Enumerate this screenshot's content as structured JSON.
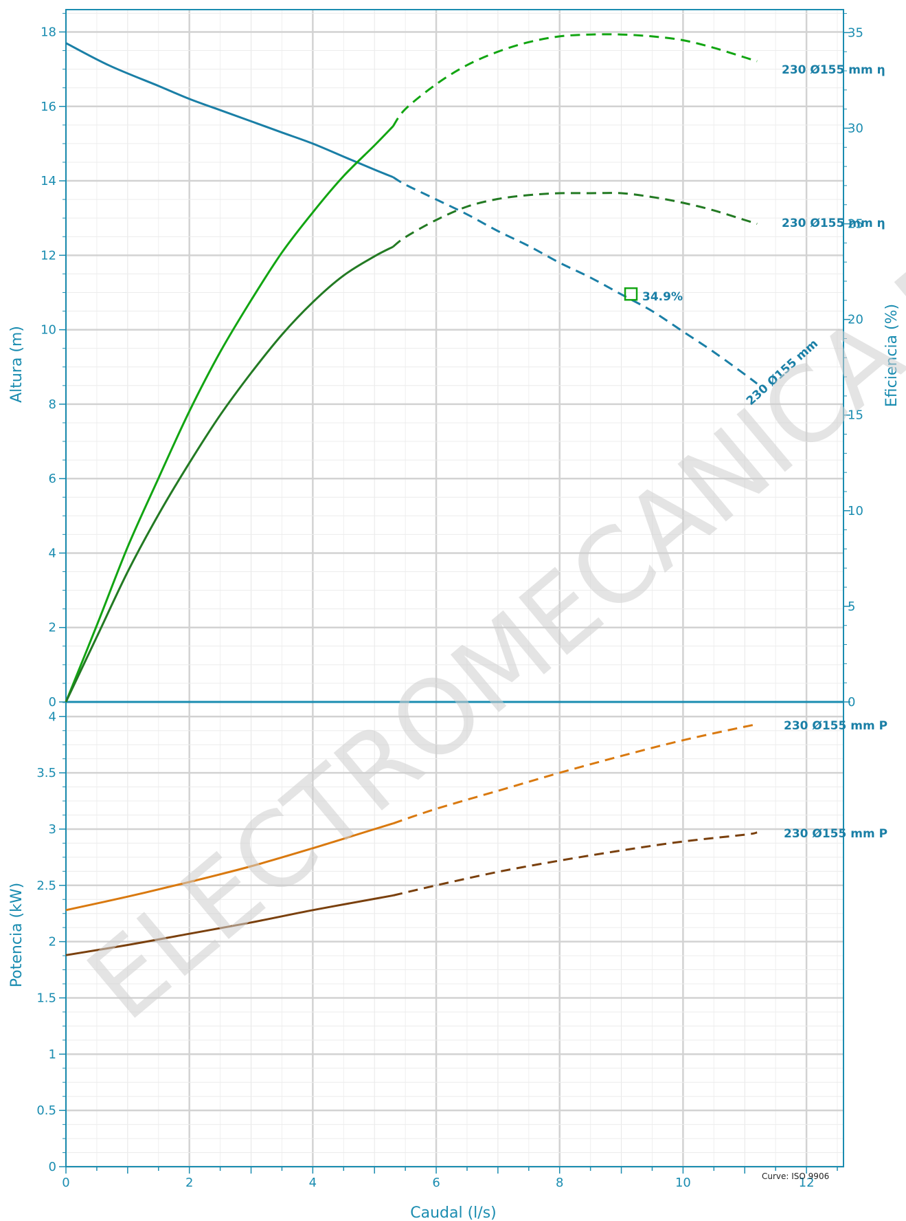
{
  "chart_data": [
    {
      "type": "line",
      "panel": "top",
      "xlabel": "Caudal (l/s)",
      "ylabel": "Altura (m)",
      "y2label": "Eficiencia (%)",
      "xlim": [
        0,
        12.6
      ],
      "ylim": [
        0,
        18.6
      ],
      "y2lim": [
        0,
        36.2
      ],
      "x_ticks": [
        "0",
        "2",
        "4",
        "6",
        "8",
        "10",
        "12"
      ],
      "y_ticks": [
        "0",
        "2",
        "4",
        "6",
        "8",
        "10",
        "12",
        "14",
        "16",
        "18"
      ],
      "y2_ticks": [
        "0",
        "5",
        "10",
        "15",
        "20",
        "25",
        "30",
        "35"
      ],
      "grid": true,
      "series": [
        {
          "name": "230 Ø155 mm",
          "axis": "left",
          "color": "#1a7fa6",
          "solid_until": 5.3,
          "x": [
            0,
            0.7,
            1.5,
            2.0,
            2.5,
            3.0,
            3.5,
            4.0,
            4.5,
            5.0,
            5.3,
            5.5,
            6.0,
            6.5,
            7.0,
            7.5,
            8.0,
            8.5,
            9.0,
            9.5,
            10.0,
            10.5,
            11.0,
            11.2
          ],
          "values": [
            17.7,
            17.1,
            16.55,
            16.2,
            15.9,
            15.6,
            15.3,
            15.0,
            14.65,
            14.3,
            14.1,
            13.9,
            13.5,
            13.1,
            12.65,
            12.25,
            11.8,
            11.4,
            10.95,
            10.5,
            9.95,
            9.4,
            8.8,
            8.55
          ]
        },
        {
          "name": "230 Ø155 mm  η",
          "axis": "right",
          "color": "#12a512",
          "solid_until": 5.3,
          "x": [
            0,
            0.5,
            1.0,
            1.5,
            2.0,
            2.5,
            3.0,
            3.5,
            4.0,
            4.5,
            5.0,
            5.3,
            5.5,
            6.0,
            6.5,
            7.0,
            7.5,
            8.0,
            8.5,
            9.0,
            9.5,
            10.0,
            10.5,
            11.0,
            11.2
          ],
          "values": [
            0,
            4.0,
            8.1,
            11.7,
            15.2,
            18.3,
            21.0,
            23.5,
            25.6,
            27.5,
            29.1,
            30.1,
            31.0,
            32.3,
            33.3,
            34.0,
            34.5,
            34.8,
            34.9,
            34.9,
            34.8,
            34.6,
            34.2,
            33.7,
            33.5
          ]
        },
        {
          "name": "230 Ø155 mm  η",
          "axis": "right",
          "color": "#237a23",
          "solid_until": 5.3,
          "x": [
            0,
            0.5,
            1.0,
            1.5,
            2.0,
            2.5,
            3.0,
            3.5,
            4.0,
            4.5,
            5.0,
            5.3,
            5.5,
            6.0,
            6.5,
            7.0,
            7.5,
            8.0,
            8.5,
            9.0,
            9.5,
            10.0,
            10.5,
            11.0,
            11.2
          ],
          "values": [
            0,
            3.4,
            6.8,
            9.8,
            12.5,
            15.0,
            17.2,
            19.2,
            20.9,
            22.3,
            23.3,
            23.8,
            24.3,
            25.2,
            25.9,
            26.3,
            26.5,
            26.6,
            26.6,
            26.6,
            26.4,
            26.1,
            25.7,
            25.2,
            25.0
          ]
        }
      ],
      "annotations": [
        {
          "text": "34.9%",
          "x": 9.15,
          "y": 10.95,
          "color": "#12a512"
        }
      ]
    },
    {
      "type": "line",
      "panel": "bottom",
      "xlabel": "Caudal (l/s)",
      "ylabel": "Potencia (kW)",
      "xlim": [
        0,
        12.6
      ],
      "ylim": [
        0,
        4.13
      ],
      "y_ticks": [
        "0",
        "0.5",
        "1",
        "1.5",
        "2",
        "2.5",
        "3",
        "3.5",
        "4"
      ],
      "grid": true,
      "series": [
        {
          "name": "230 Ø155 mm  P",
          "color": "#d9790f",
          "solid_until": 5.3,
          "x": [
            0,
            1,
            2,
            3,
            4,
            5,
            5.3,
            6,
            7,
            8,
            9,
            10,
            11,
            11.2
          ],
          "values": [
            2.28,
            2.4,
            2.53,
            2.67,
            2.83,
            3.0,
            3.05,
            3.18,
            3.34,
            3.5,
            3.65,
            3.79,
            3.91,
            3.93
          ]
        },
        {
          "name": "230 Ø155 mm  P",
          "color": "#7a400d",
          "solid_until": 5.3,
          "x": [
            0,
            1,
            2,
            3,
            4,
            5,
            5.3,
            6,
            7,
            8,
            9,
            10,
            11,
            11.2
          ],
          "values": [
            1.88,
            1.97,
            2.07,
            2.17,
            2.28,
            2.38,
            2.41,
            2.5,
            2.62,
            2.72,
            2.81,
            2.89,
            2.95,
            2.97
          ]
        }
      ]
    }
  ],
  "page": {
    "footnote": "Curve: ISO 9906",
    "watermark": "ELECTROMECANICA MM",
    "head_curve_label": "230 Ø155 mm"
  }
}
